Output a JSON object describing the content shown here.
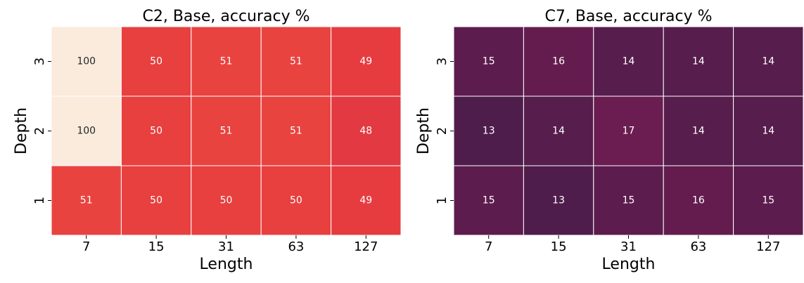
{
  "chart_data": [
    {
      "type": "heatmap",
      "title": "C2, Base, accuracy %",
      "xlabel": "Length",
      "ylabel": "Depth",
      "x": [
        7,
        15,
        31,
        63,
        127
      ],
      "y": [
        3,
        2,
        1
      ],
      "values": [
        [
          100,
          50,
          51,
          51,
          49
        ],
        [
          100,
          50,
          51,
          51,
          48
        ],
        [
          51,
          50,
          50,
          50,
          49
        ]
      ],
      "clim": [
        0,
        100
      ],
      "colormap": [
        "#03051a",
        "#4c1d4b",
        "#a11a5b",
        "#cb1b4f",
        "#e83f3f",
        "#f37651",
        "#f6a47c",
        "#f6cdb2",
        "#faebdd"
      ]
    },
    {
      "type": "heatmap",
      "title": "C7, Base, accuracy %",
      "xlabel": "Length",
      "ylabel": "Depth",
      "x": [
        7,
        15,
        31,
        63,
        127
      ],
      "y": [
        3,
        2,
        1
      ],
      "values": [
        [
          15,
          16,
          14,
          14,
          14
        ],
        [
          13,
          14,
          17,
          14,
          14
        ],
        [
          15,
          13,
          15,
          16,
          15
        ]
      ],
      "clim": [
        0,
        100
      ],
      "colormap": [
        "#03051a",
        "#4c1d4b",
        "#a11a5b",
        "#cb1b4f",
        "#e83f3f",
        "#f37651",
        "#f6a47c",
        "#f6cdb2",
        "#faebdd"
      ]
    }
  ]
}
